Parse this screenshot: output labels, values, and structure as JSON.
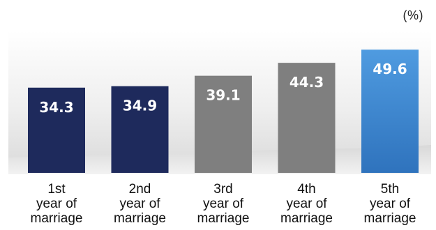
{
  "chart_data": {
    "type": "bar",
    "unit_label": "(%)",
    "categories": [
      [
        "1st",
        "year of",
        "marriage"
      ],
      [
        "2nd",
        "year of",
        "marriage"
      ],
      [
        "3rd",
        "year of",
        "marriage"
      ],
      [
        "4th",
        "year of",
        "marriage"
      ],
      [
        "5th",
        "year of",
        "marriage"
      ]
    ],
    "values": [
      34.3,
      34.9,
      39.1,
      44.3,
      49.6
    ],
    "value_labels": [
      "34.3",
      "34.9",
      "39.1",
      "44.3",
      "49.6"
    ],
    "ylim": [
      0,
      55
    ],
    "grid": false,
    "legend": "none",
    "colors": [
      "#1e2a5c",
      "#1e2a5c",
      "#7f7f7f",
      "#7f7f7f",
      "#3a86cf"
    ]
  }
}
